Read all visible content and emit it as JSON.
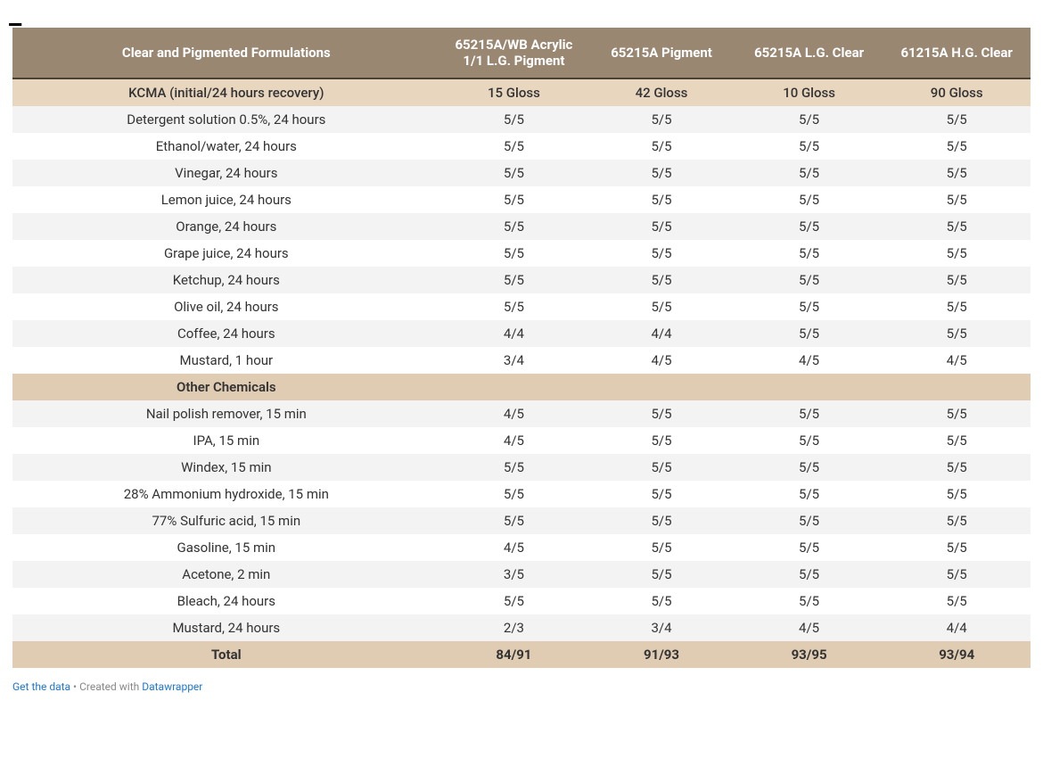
{
  "table": {
    "type": "table",
    "background_color": "#ffffff",
    "header_bg": "#9a8772",
    "header_text_color": "#ffffff",
    "header_border_bottom": "#4a4034",
    "kcma_row_bg": "#e8d6bf",
    "section_row_bg": "#e0ccb3",
    "total_row_bg": "#e0ccb3",
    "stripe_even_bg": "#f3f3f3",
    "stripe_odd_bg": "#ffffff",
    "text_color": "#333333",
    "font_size_pt": 11,
    "header_font_size_pt": 11,
    "header_font_weight": 700,
    "col_widths_pct": [
      42,
      14.5,
      14.5,
      14.5,
      14.5
    ],
    "columns": [
      "Clear and Pigmented Formulations",
      "65215A/WB Acrylic 1/1 L.G. Pigment",
      "65215A Pigment",
      "65215A L.G. Clear",
      "61215A H.G. Clear"
    ],
    "rows": [
      {
        "kind": "kcma",
        "label": "KCMA (initial/24 hours recovery)",
        "cells": [
          "15 Gloss",
          "42 Gloss",
          "10 Gloss",
          "90 Gloss"
        ]
      },
      {
        "kind": "data",
        "label": "Detergent solution 0.5%, 24 hours",
        "cells": [
          "5/5",
          "5/5",
          "5/5",
          "5/5"
        ]
      },
      {
        "kind": "data",
        "label": "Ethanol/water, 24 hours",
        "cells": [
          "5/5",
          "5/5",
          "5/5",
          "5/5"
        ]
      },
      {
        "kind": "data",
        "label": "Vinegar, 24 hours",
        "cells": [
          "5/5",
          "5/5",
          "5/5",
          "5/5"
        ]
      },
      {
        "kind": "data",
        "label": "Lemon juice, 24 hours",
        "cells": [
          "5/5",
          "5/5",
          "5/5",
          "5/5"
        ]
      },
      {
        "kind": "data",
        "label": "Orange, 24 hours",
        "cells": [
          "5/5",
          "5/5",
          "5/5",
          "5/5"
        ]
      },
      {
        "kind": "data",
        "label": "Grape juice, 24 hours",
        "cells": [
          "5/5",
          "5/5",
          "5/5",
          "5/5"
        ]
      },
      {
        "kind": "data",
        "label": "Ketchup, 24 hours",
        "cells": [
          "5/5",
          "5/5",
          "5/5",
          "5/5"
        ]
      },
      {
        "kind": "data",
        "label": "Olive oil, 24 hours",
        "cells": [
          "5/5",
          "5/5",
          "5/5",
          "5/5"
        ]
      },
      {
        "kind": "data",
        "label": "Coffee, 24 hours",
        "cells": [
          "4/4",
          "4/4",
          "5/5",
          "5/5"
        ]
      },
      {
        "kind": "data",
        "label": "Mustard, 1 hour",
        "cells": [
          "3/4",
          "4/5",
          "4/5",
          "4/5"
        ]
      },
      {
        "kind": "section",
        "label": "Other Chemicals",
        "cells": [
          "",
          "",
          "",
          ""
        ]
      },
      {
        "kind": "data",
        "label": "Nail polish remover, 15 min",
        "cells": [
          "4/5",
          "5/5",
          "5/5",
          "5/5"
        ]
      },
      {
        "kind": "data",
        "label": "IPA, 15 min",
        "cells": [
          "4/5",
          "5/5",
          "5/5",
          "5/5"
        ]
      },
      {
        "kind": "data",
        "label": "Windex, 15 min",
        "cells": [
          "5/5",
          "5/5",
          "5/5",
          "5/5"
        ]
      },
      {
        "kind": "data",
        "label": "28% Ammonium hydroxide, 15 min",
        "cells": [
          "5/5",
          "5/5",
          "5/5",
          "5/5"
        ]
      },
      {
        "kind": "data",
        "label": "77% Sulfuric acid, 15 min",
        "cells": [
          "5/5",
          "5/5",
          "5/5",
          "5/5"
        ]
      },
      {
        "kind": "data",
        "label": "Gasoline, 15 min",
        "cells": [
          "4/5",
          "5/5",
          "5/5",
          "5/5"
        ]
      },
      {
        "kind": "data",
        "label": "Acetone, 2 min",
        "cells": [
          "3/5",
          "5/5",
          "5/5",
          "5/5"
        ]
      },
      {
        "kind": "data",
        "label": "Bleach, 24 hours",
        "cells": [
          "5/5",
          "5/5",
          "5/5",
          "5/5"
        ]
      },
      {
        "kind": "data",
        "label": "Mustard, 24 hours",
        "cells": [
          "2/3",
          "3/4",
          "4/5",
          "4/4"
        ]
      },
      {
        "kind": "total",
        "label": "Total",
        "cells": [
          "84/91",
          "91/93",
          "93/95",
          "93/94"
        ]
      }
    ]
  },
  "footer": {
    "get_data_label": "Get the data",
    "separator": " • ",
    "created_prefix": "Created with ",
    "created_tool": "Datawrapper",
    "link_color": "#1f77d0",
    "text_color": "#888888",
    "font_size_pt": 9
  }
}
